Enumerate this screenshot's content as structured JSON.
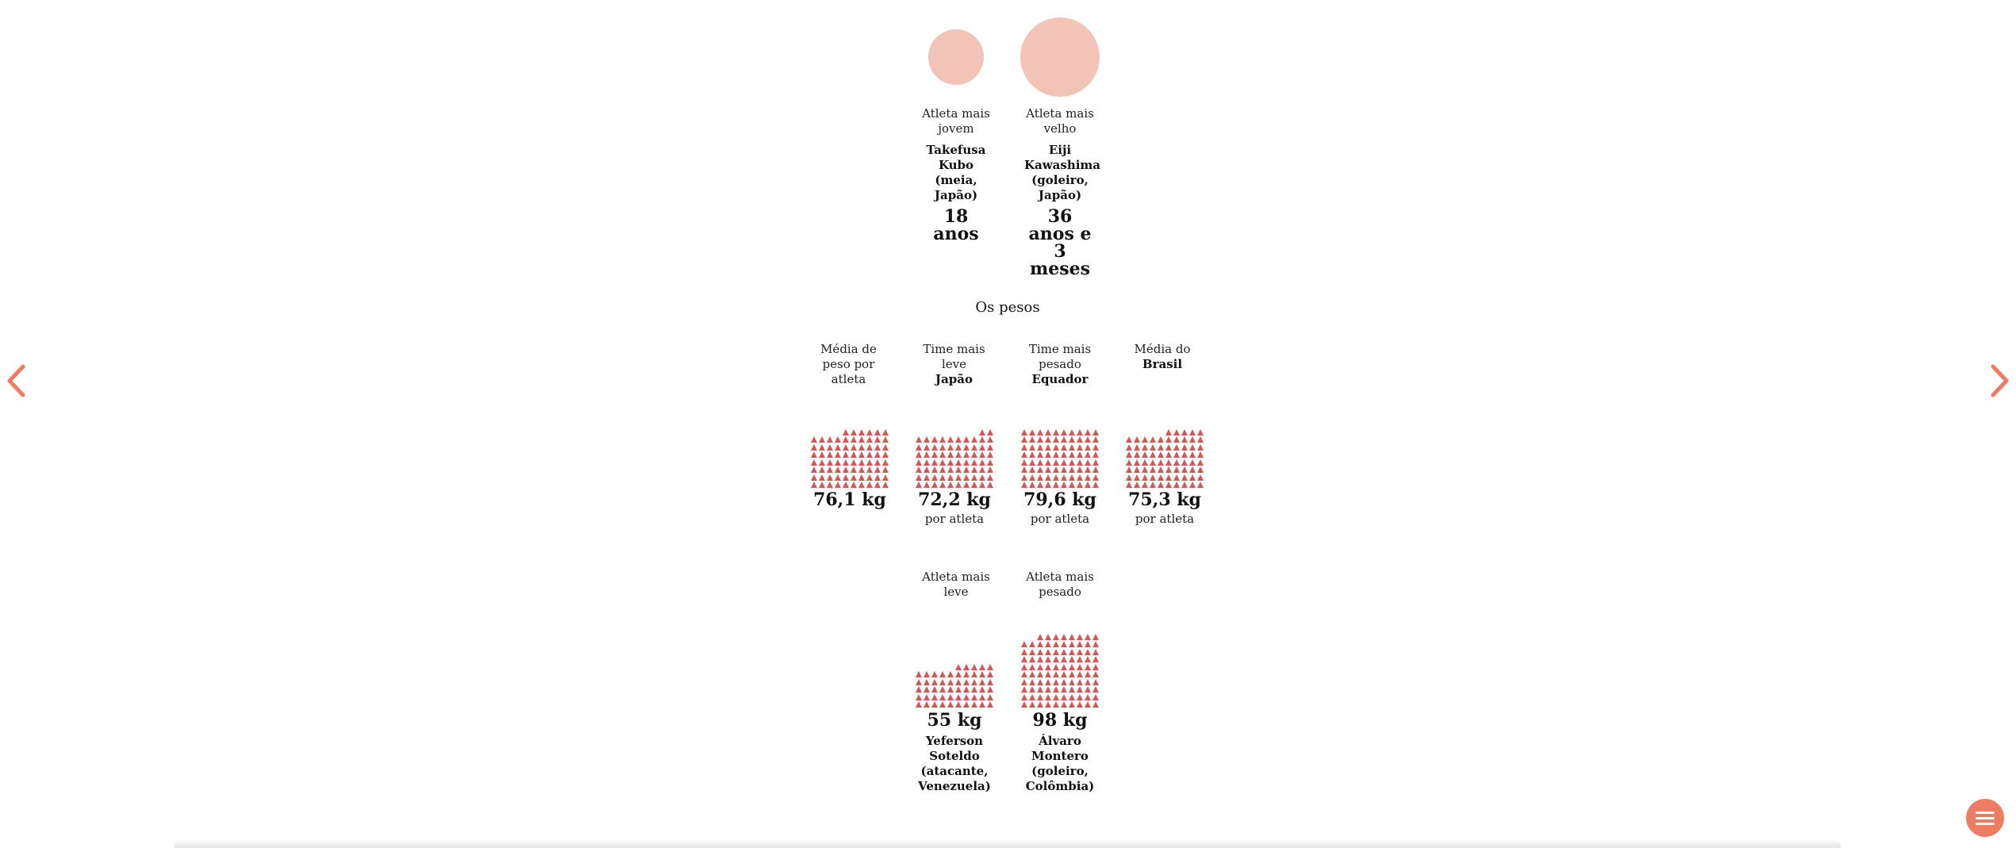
{
  "ages": {
    "youngest": {
      "label": "Atleta mais jovem",
      "name": "Takefusa Kubo (meia, Japão)",
      "value": "18 anos",
      "color": "#f2c4b8"
    },
    "oldest": {
      "label": "Atleta mais velho",
      "name": "Eiji Kawashima (goleiro, Japão)",
      "value": "36 anos e 3 meses",
      "color": "#f2c4b8"
    }
  },
  "weights": {
    "title": "Os pesos",
    "icon_color": "#cd5c57",
    "team_stats": [
      {
        "label": "Média de peso por atleta",
        "team": "",
        "value": "76,1 kg",
        "per": "",
        "kg": 76.1
      },
      {
        "label": "Time mais leve",
        "team": "Japão",
        "value": "72,2 kg",
        "per": "por atleta",
        "kg": 72.2
      },
      {
        "label": "Time mais pesado",
        "team": "Equador",
        "value": "79,6 kg",
        "per": "por atleta",
        "kg": 79.6
      },
      {
        "label": "Média do",
        "team": "Brasil",
        "value": "75,3 kg",
        "per": "por atleta",
        "kg": 75.3
      }
    ],
    "athletes": [
      {
        "label": "Atleta mais leve",
        "value": "55 kg",
        "name": "Yeferson Soteldo (atacante, Venezuela)",
        "kg": 55
      },
      {
        "label": "Atleta mais pesado",
        "value": "98 kg",
        "name": "Álvaro Montero (goleiro, Colômbia)",
        "kg": 98
      }
    ]
  },
  "nav": {
    "prev_icon": "chevron-left-icon",
    "next_icon": "chevron-right-icon",
    "menu_icon": "hamburger-menu-icon",
    "accent": "#ee7c63"
  }
}
